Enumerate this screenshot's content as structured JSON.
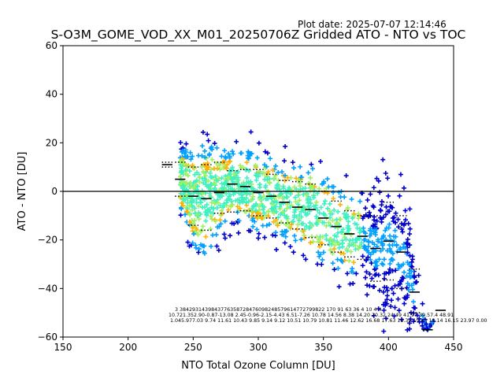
{
  "chart_data": {
    "type": "scatter",
    "title": "S-O3M_GOME_VOD_XX_M01_20250706Z Gridded ATO - NTO vs TOC",
    "plot_date": "Plot date: 2025-07-07 12:14:46",
    "xlabel": "NTO Total Ozone Column [DU]",
    "ylabel": "ATO - NTO [DU]",
    "xlim": [
      150,
      450
    ],
    "ylim": [
      -60,
      60
    ],
    "xticks": [
      "150",
      "200",
      "250",
      "300",
      "350",
      "400",
      "450"
    ],
    "yticks": [
      "−60",
      "−40",
      "−20",
      "0",
      "20",
      "40",
      "60"
    ],
    "grid": false,
    "zero_line": 0,
    "colors": {
      "low_density": "#0000cc",
      "mid_low_density": "#00a0ff",
      "mid_density": "#40f0c0",
      "mid_high_density": "#a0f060",
      "high_density": "#ffb000",
      "mean_marker": "#000000",
      "std_marker": "#000000"
    },
    "binned_stats": [
      {
        "x": 230,
        "mean": 11.0,
        "std_lo": 10.0,
        "std_hi": 12.0
      },
      {
        "x": 240,
        "mean": 5.0,
        "std_lo": -2.0,
        "std_hi": 12.0
      },
      {
        "x": 250,
        "mean": -2.0,
        "std_lo": -14.0,
        "std_hi": 10.0
      },
      {
        "x": 260,
        "mean": -3.0,
        "std_lo": -16.0,
        "std_hi": 11.0
      },
      {
        "x": 270,
        "mean": -0.5,
        "std_lo": -9.0,
        "std_hi": 12.0
      },
      {
        "x": 280,
        "mean": 3.0,
        "std_lo": -8.5,
        "std_hi": 8.5
      },
      {
        "x": 290,
        "mean": 2.0,
        "std_lo": -8.0,
        "std_hi": 9.0
      },
      {
        "x": 300,
        "mean": -0.5,
        "std_lo": -10.0,
        "std_hi": 9.0
      },
      {
        "x": 310,
        "mean": -2.0,
        "std_lo": -11.0,
        "std_hi": 7.0
      },
      {
        "x": 320,
        "mean": -4.5,
        "std_lo": -13.0,
        "std_hi": 4.5
      },
      {
        "x": 330,
        "mean": -6.5,
        "std_lo": -15.5,
        "std_hi": 4.0
      },
      {
        "x": 340,
        "mean": -7.5,
        "std_lo": -19.0,
        "std_hi": 3.0
      },
      {
        "x": 350,
        "mean": -11.0,
        "std_lo": -22.0,
        "std_hi": 0.0
      },
      {
        "x": 360,
        "mean": -14.5,
        "std_lo": -25.0,
        "std_hi": -4.0
      },
      {
        "x": 370,
        "mean": -17.5,
        "std_lo": -27.0,
        "std_hi": -8.0
      },
      {
        "x": 380,
        "mean": -18.5,
        "std_lo": -28.0,
        "std_hi": -10.0
      },
      {
        "x": 390,
        "mean": -23.5,
        "std_lo": -37.0,
        "std_hi": -10.0
      },
      {
        "x": 400,
        "mean": -20.5,
        "std_lo": -36.5,
        "std_hi": -4.5
      },
      {
        "x": 410,
        "mean": -25.0,
        "std_lo": -40.0,
        "std_hi": -10.0
      },
      {
        "x": 420,
        "mean": -41.5,
        "std_lo": -50.0,
        "std_hi": -32.0
      },
      {
        "x": 430,
        "mean": -57.0,
        "std_lo": -57.0,
        "std_hi": -57.0
      },
      {
        "x": 440,
        "mean": -49.0,
        "std_lo": -49.0,
        "std_hi": -49.0
      }
    ],
    "stats_annotation_rows": [
      "3    3842931439843776358728476098248579614772799822 170 91     63   36 4 10    4    4",
      "10.721.352.90-0.87-13.08 2.45-0.96-2.15-4.43 6.51-7.26 10.78 14.56 8.38 14.20 20.32 24.49 41.97 39.57.4 48.91",
      "1.045.977.03 9.74 11.61 10.43 9.85 9.14 9.12 10.51 10.79 10.81 11.46 12.62 16.68 17.63 16.39 19.43 18.14 16.15 23.97 0.00"
    ]
  }
}
